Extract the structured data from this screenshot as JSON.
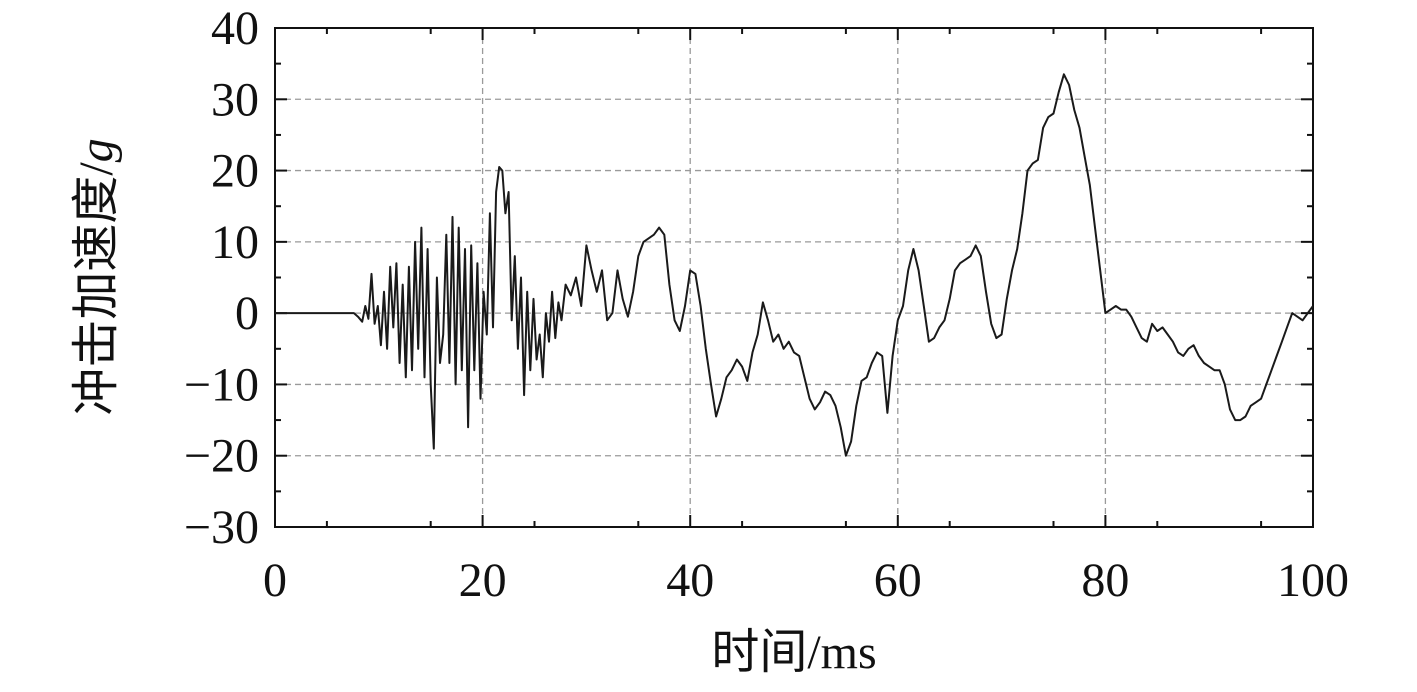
{
  "chart_data": {
    "type": "line",
    "title": "",
    "xlabel": "时间/ms",
    "ylabel_main": "冲击加速度/",
    "ylabel_unit": "g",
    "xlim": [
      0,
      100
    ],
    "ylim": [
      -30,
      40
    ],
    "x_ticks": [
      0,
      20,
      40,
      60,
      80,
      100
    ],
    "y_ticks": [
      40,
      30,
      20,
      10,
      0,
      -10,
      -20,
      -30
    ],
    "x_tick_labels": [
      "0",
      "20",
      "40",
      "60",
      "80",
      "100"
    ],
    "y_tick_labels": [
      "40",
      "30",
      "20",
      "10",
      "0",
      "−10",
      "−20",
      "−30"
    ],
    "grid": true,
    "colors": {
      "line": "#1a1a1a",
      "grid": "#9a9a9a",
      "axes": "#111111"
    },
    "series": [
      {
        "x": [
          0,
          7.0,
          7.6,
          8.0,
          8.4,
          8.7,
          9.0,
          9.3,
          9.6,
          9.9,
          10.2,
          10.5,
          10.8,
          11.1,
          11.4,
          11.7,
          12.0,
          12.3,
          12.6,
          12.9,
          13.2,
          13.5,
          13.8,
          14.1,
          14.4,
          14.7,
          15.0,
          15.3,
          15.6,
          15.9,
          16.2,
          16.5,
          16.8,
          17.1,
          17.4,
          17.7,
          18.0,
          18.3,
          18.6,
          18.9,
          19.2,
          19.5,
          19.8,
          20.1,
          20.4,
          20.7,
          21.0,
          21.3,
          21.6,
          21.9,
          22.2,
          22.5,
          22.8,
          23.1,
          23.4,
          23.7,
          24.0,
          24.3,
          24.6,
          24.9,
          25.2,
          25.5,
          25.8,
          26.1,
          26.4,
          26.7,
          27.0,
          27.3,
          27.6,
          28.0,
          28.5,
          29.0,
          29.5,
          30.0,
          30.5,
          31.0,
          31.5,
          32.0,
          32.5,
          33.0,
          33.5,
          34.0,
          34.5,
          35.0,
          35.5,
          36.0,
          36.5,
          37.0,
          37.5,
          38.0,
          38.5,
          39.0,
          39.5,
          40.0,
          40.5,
          41.0,
          41.5,
          42.0,
          42.5,
          43.0,
          43.5,
          44.0,
          44.5,
          45.0,
          45.5,
          46.0,
          46.5,
          47.0,
          47.5,
          48.0,
          48.5,
          49.0,
          49.5,
          50.0,
          50.5,
          51.0,
          51.5,
          52.0,
          52.5,
          53.0,
          53.5,
          54.0,
          54.5,
          55.0,
          55.5,
          56.0,
          56.5,
          57.0,
          57.5,
          58.0,
          58.5,
          59.0,
          59.5,
          60.0,
          60.5,
          61.0,
          61.5,
          62.0,
          62.5,
          63.0,
          63.5,
          64.0,
          64.5,
          65.0,
          65.5,
          66.0,
          66.5,
          67.0,
          67.5,
          68.0,
          68.5,
          69.0,
          69.5,
          70.0,
          70.5,
          71.0,
          71.5,
          72.0,
          72.5,
          73.0,
          73.5,
          74.0,
          74.5,
          75.0,
          75.5,
          76.0,
          76.5,
          77.0,
          77.5,
          78.0,
          78.5,
          79.0,
          79.5,
          80.0,
          80.5,
          81.0,
          81.5,
          82.0,
          82.5,
          83.0,
          83.5,
          84.0,
          84.5,
          85.0,
          85.5,
          86.0,
          86.5,
          87.0,
          87.5,
          88.0,
          88.5,
          89.0,
          89.5,
          90.0,
          90.5,
          91.0,
          91.5,
          92.0,
          92.5,
          93.0,
          93.5,
          94.0,
          94.5,
          95.0,
          95.5,
          96.0,
          96.5,
          97.0,
          97.5,
          98.0,
          98.5,
          99.0,
          99.5,
          100.0
        ],
        "y": [
          0,
          0,
          0,
          -0.5,
          -1.2,
          1.0,
          -0.8,
          5.5,
          -1.5,
          1.0,
          -4.5,
          3.0,
          -5.0,
          6.5,
          -2.0,
          7.0,
          -7.0,
          4.0,
          -9.0,
          6.5,
          -8.0,
          10.0,
          -5.0,
          12.0,
          -9.0,
          9.0,
          -10.0,
          -19.0,
          5.0,
          -7.0,
          -3.0,
          11.0,
          -7.0,
          13.5,
          -10.0,
          12.0,
          -8.0,
          9.0,
          -16.0,
          9.5,
          -8.0,
          7.0,
          -12.0,
          3.0,
          -3.0,
          14.0,
          -2.0,
          17.0,
          20.5,
          20.0,
          14.0,
          17.0,
          -1.0,
          8.0,
          -5.0,
          5.0,
          -11.5,
          3.0,
          -8.0,
          2.0,
          -6.5,
          -3.0,
          -9.0,
          0.0,
          -4.0,
          3.0,
          -3.5,
          1.5,
          -1.0,
          4.0,
          2.5,
          5.0,
          1.0,
          9.5,
          6.0,
          3.0,
          6.0,
          -1.0,
          0.0,
          6.0,
          2.0,
          -0.5,
          3.0,
          8.0,
          10.0,
          10.5,
          11.0,
          12.0,
          11.0,
          4.0,
          -1.0,
          -2.5,
          1.0,
          6.0,
          5.5,
          1.0,
          -5.0,
          -10.0,
          -14.5,
          -12.0,
          -9.0,
          -8.0,
          -6.5,
          -7.5,
          -9.5,
          -5.5,
          -3.0,
          1.5,
          -1.0,
          -4.0,
          -3.0,
          -5.0,
          -4.0,
          -5.5,
          -6.0,
          -9.0,
          -12.0,
          -13.5,
          -12.5,
          -11.0,
          -11.5,
          -13.0,
          -16.0,
          -20.0,
          -18.0,
          -13.0,
          -9.5,
          -9.0,
          -7.0,
          -5.5,
          -6.0,
          -14.0,
          -6.0,
          -1.0,
          1.0,
          6.0,
          9.0,
          6.0,
          1.0,
          -4.0,
          -3.5,
          -2.0,
          -1.0,
          2.0,
          6.0,
          7.0,
          7.5,
          8.0,
          9.5,
          8.0,
          3.0,
          -1.5,
          -3.5,
          -3.0,
          2.0,
          6.0,
          9.0,
          14.0,
          20.0,
          21.0,
          21.5,
          26.0,
          27.5,
          28.0,
          31.0,
          33.5,
          32.0,
          28.5,
          26.0,
          22.0,
          18.0,
          12.0,
          6.0,
          0.0,
          0.5,
          1.0,
          0.5,
          0.5,
          -0.5,
          -2.0,
          -3.5,
          -4.0,
          -1.5,
          -2.5,
          -2.0,
          -3.0,
          -4.0,
          -5.5,
          -6.0,
          -5.0,
          -4.5,
          -6.0,
          -7.0,
          -7.5,
          -8.0,
          -8.0,
          -10.0,
          -13.5,
          -15.0,
          -15.0,
          -14.5,
          -13.0,
          -12.5,
          -12.0,
          -10.0,
          -8.0,
          -6.0,
          -4.0,
          -2.0,
          0.0,
          -0.5,
          -1.0,
          0.0,
          1.0
        ]
      }
    ]
  }
}
